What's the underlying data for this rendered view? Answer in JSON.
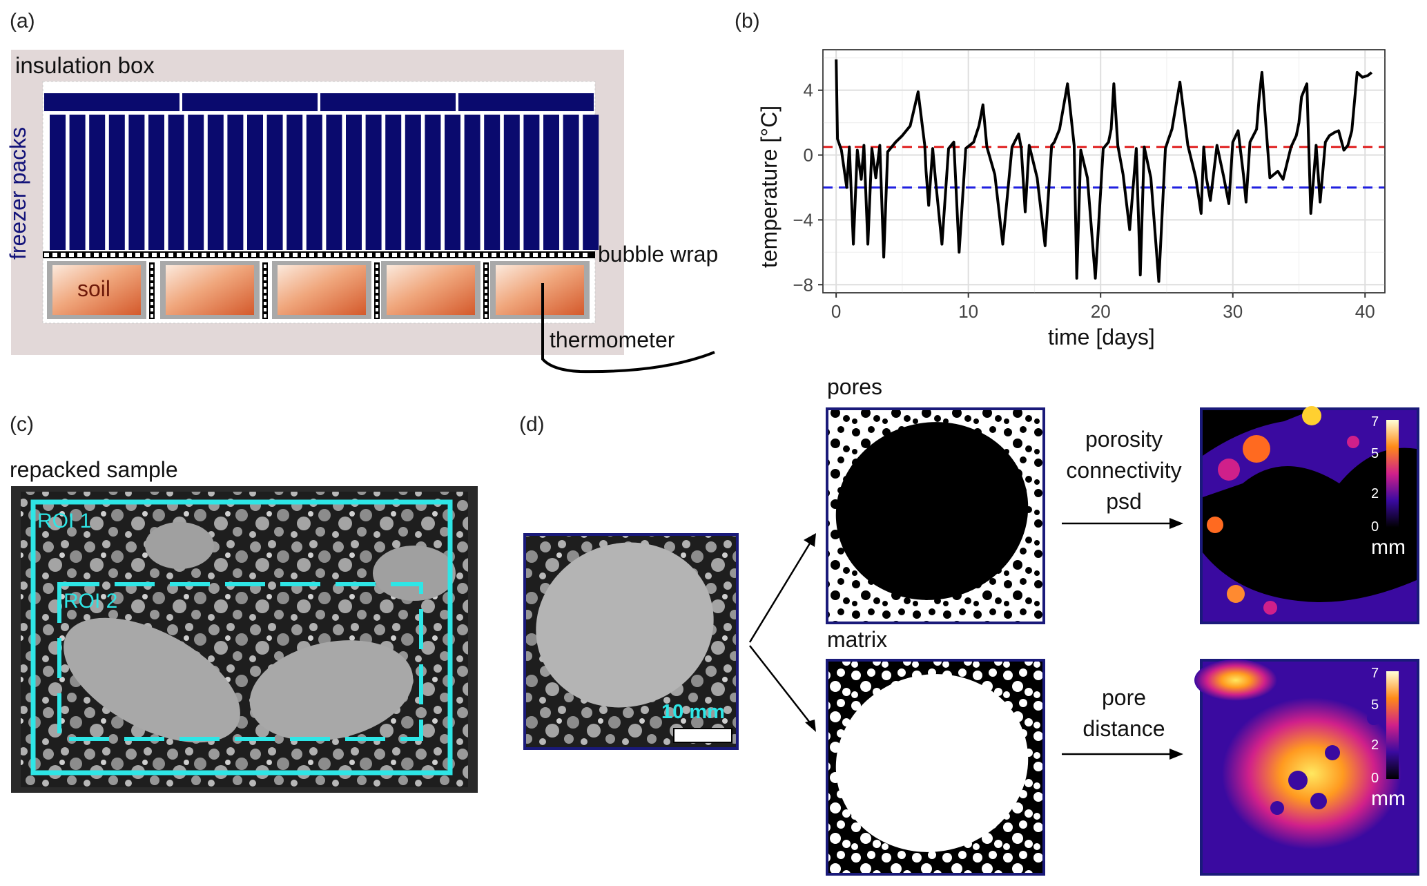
{
  "panel_a": {
    "label": "(a)",
    "box_label": "insulation box",
    "freezer_label": "freezer packs",
    "bubble_label": "bubble wrap",
    "soil_label": "soil",
    "thermo_label": "thermometer",
    "colors": {
      "box": "#e2d8d8",
      "freezer": "#0a0a6e",
      "soil_light": "#fbe3d2",
      "soil_dark": "#d9663a",
      "tray": "#a9a9a9"
    }
  },
  "panel_b": {
    "label": "(b)",
    "ylabel": "temperature [°C]",
    "xlabel": "time [days]",
    "xticks": [
      "0",
      "10",
      "20",
      "30",
      "40"
    ],
    "yticks": [
      "4",
      "0",
      "−4",
      "−8"
    ]
  },
  "panel_c": {
    "label": "(c)",
    "title": "repacked sample",
    "roi1": "ROI 1",
    "roi2": "ROI 2",
    "roi_color": "#2ee6e6"
  },
  "panel_d": {
    "label": "(d)",
    "scale_bar": "10 mm",
    "pores_label": "pores",
    "matrix_label": "matrix",
    "arrow1_lines": [
      "porosity",
      "connectivity",
      "psd"
    ],
    "arrow2_lines": [
      "pore",
      "distance"
    ],
    "colorbar_ticks": [
      "7",
      "5",
      "2",
      "0"
    ],
    "colorbar_unit": "mm",
    "frame_color": "#1a1a7a"
  },
  "chart_data": {
    "type": "line",
    "title": "",
    "xlabel": "time [days]",
    "ylabel": "temperature [°C]",
    "xlim": [
      -1,
      41.5
    ],
    "ylim": [
      -8.5,
      6.5
    ],
    "grid": true,
    "legend": "none",
    "x_ticks": [
      0,
      10,
      20,
      30,
      40
    ],
    "y_ticks": [
      4,
      0,
      -4,
      -8
    ],
    "reference_lines": [
      {
        "y": 0.5,
        "style": "dashed",
        "color": "#e02020"
      },
      {
        "y": -2.0,
        "style": "dashed",
        "color": "#2020e0"
      }
    ],
    "series": [
      {
        "color": "#000000",
        "x": [
          0,
          0.1,
          0.4,
          0.8,
          1.0,
          1.3,
          1.6,
          1.9,
          2.1,
          2.4,
          2.7,
          3.0,
          3.3,
          3.6,
          3.9,
          4.2,
          4.5,
          5.0,
          5.6,
          6.2,
          6.7,
          6.8,
          7.0,
          7.3,
          7.5,
          8.0,
          8.5,
          8.9,
          9.3,
          9.8,
          10.4,
          10.8,
          11.1,
          11.4,
          12.0,
          12.6,
          13.3,
          13.8,
          14.0,
          14.3,
          14.6,
          15.2,
          15.8,
          16.3,
          16.5,
          16.9,
          17.5,
          18.0,
          18.2,
          18.5,
          19.0,
          19.6,
          20.2,
          20.6,
          20.8,
          21.0,
          21.3,
          21.7,
          22.2,
          22.7,
          23.0,
          23.3,
          23.8,
          24.4,
          24.9,
          25.1,
          25.4,
          26.0,
          26.6,
          27.2,
          27.6,
          27.8,
          28.0,
          28.3,
          28.8,
          29.3,
          29.7,
          30.0,
          30.4,
          30.8,
          31.0,
          31.3,
          31.8,
          32.0,
          32.2,
          32.8,
          33.4,
          33.8,
          34.4,
          34.8,
          35.0,
          35.2,
          35.6,
          35.9,
          36.3,
          36.6,
          37.0,
          37.3,
          37.7,
          38.0,
          38.4,
          38.7,
          39.0,
          39.4,
          39.8,
          40.2,
          40.5
        ],
        "y": [
          5.9,
          1.0,
          0.3,
          -2.0,
          0.5,
          -5.5,
          0.3,
          -1.5,
          0.6,
          -5.5,
          0.4,
          -1.4,
          0.6,
          -6.3,
          0.2,
          0.5,
          0.8,
          1.2,
          1.8,
          3.9,
          0.6,
          -1.0,
          -3.1,
          0.4,
          -1.4,
          -5.5,
          0.4,
          0.8,
          -6.0,
          0.4,
          0.8,
          1.8,
          3.1,
          0.5,
          -1.2,
          -5.5,
          0.5,
          1.3,
          0.4,
          -3.5,
          0.6,
          -1.4,
          -5.6,
          0.6,
          0.8,
          1.6,
          4.4,
          0.6,
          -7.6,
          0.3,
          -1.4,
          -7.6,
          0.4,
          0.8,
          1.6,
          4.4,
          0.6,
          -1.2,
          -4.6,
          0.4,
          -7.4,
          0.5,
          -1.4,
          -7.8,
          0.4,
          0.9,
          1.6,
          4.5,
          0.6,
          -1.4,
          -3.6,
          0.5,
          -1.4,
          -2.8,
          0.6,
          -1.3,
          -3.0,
          0.8,
          1.5,
          -1.2,
          -2.9,
          0.8,
          1.6,
          3.6,
          5.1,
          -1.4,
          -1.0,
          -1.5,
          0.5,
          1.2,
          2.0,
          3.6,
          4.4,
          -3.6,
          0.6,
          -2.9,
          0.8,
          1.2,
          1.4,
          1.5,
          0.3,
          0.6,
          1.5,
          5.1,
          4.8,
          4.9,
          5.1
        ]
      }
    ]
  }
}
